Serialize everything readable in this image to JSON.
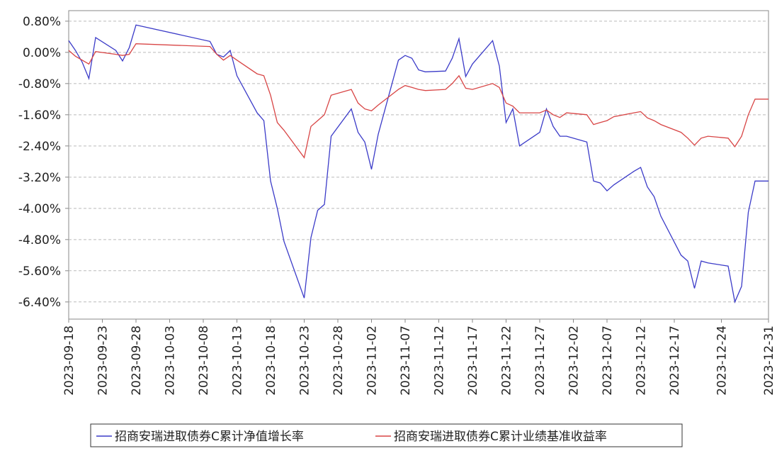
{
  "chart_data": {
    "type": "line",
    "x": [
      "2023-09-18",
      "2023-09-19",
      "2023-09-20",
      "2023-09-21",
      "2023-09-22",
      "2023-09-25",
      "2023-09-26",
      "2023-09-27",
      "2023-09-28",
      "2023-10-09",
      "2023-10-10",
      "2023-10-11",
      "2023-10-12",
      "2023-10-13",
      "2023-10-16",
      "2023-10-17",
      "2023-10-18",
      "2023-10-19",
      "2023-10-20",
      "2023-10-23",
      "2023-10-24",
      "2023-10-25",
      "2023-10-26",
      "2023-10-27",
      "2023-10-30",
      "2023-10-31",
      "2023-11-01",
      "2023-11-02",
      "2023-11-03",
      "2023-11-06",
      "2023-11-07",
      "2023-11-08",
      "2023-11-09",
      "2023-11-10",
      "2023-11-13",
      "2023-11-14",
      "2023-11-15",
      "2023-11-16",
      "2023-11-17",
      "2023-11-20",
      "2023-11-21",
      "2023-11-22",
      "2023-11-23",
      "2023-11-24",
      "2023-11-27",
      "2023-11-28",
      "2023-11-29",
      "2023-11-30",
      "2023-12-01",
      "2023-12-04",
      "2023-12-05",
      "2023-12-06",
      "2023-12-07",
      "2023-12-08",
      "2023-12-11",
      "2023-12-12",
      "2023-12-13",
      "2023-12-14",
      "2023-12-15",
      "2023-12-18",
      "2023-12-19",
      "2023-12-20",
      "2023-12-21",
      "2023-12-22",
      "2023-12-25",
      "2023-12-26",
      "2023-12-27",
      "2023-12-28",
      "2023-12-29",
      "2023-12-31"
    ],
    "series": [
      {
        "name": "招商安瑞进取债券C累计净值增长率",
        "color": "#3b3bc8",
        "values": [
          0.3,
          0.05,
          -0.25,
          -0.67,
          0.38,
          0.05,
          -0.22,
          0.12,
          0.7,
          0.28,
          -0.05,
          -0.12,
          0.05,
          -0.6,
          -1.55,
          -1.75,
          -3.3,
          -4.0,
          -4.85,
          -6.3,
          -4.75,
          -4.05,
          -3.9,
          -2.15,
          -1.45,
          -2.05,
          -2.3,
          -3.0,
          -2.1,
          -0.2,
          -0.08,
          -0.15,
          -0.45,
          -0.5,
          -0.48,
          -0.15,
          0.35,
          -0.62,
          -0.3,
          0.3,
          -0.35,
          -1.8,
          -1.45,
          -2.4,
          -2.05,
          -1.45,
          -1.9,
          -2.15,
          -2.15,
          -2.3,
          -3.3,
          -3.35,
          -3.55,
          -3.4,
          -3.05,
          -2.95,
          -3.45,
          -3.7,
          -4.2,
          -5.2,
          -5.35,
          -6.05,
          -5.35,
          -5.4,
          -5.48,
          -6.4,
          -6.0,
          -4.1,
          -3.3,
          -3.3
        ]
      },
      {
        "name": "招商安瑞进取债券C累计业绩基准收益率",
        "color": "#d84545",
        "values": [
          0.05,
          -0.1,
          -0.2,
          -0.3,
          0.02,
          -0.05,
          -0.08,
          -0.05,
          0.22,
          0.15,
          -0.05,
          -0.2,
          -0.08,
          -0.2,
          -0.55,
          -0.6,
          -1.1,
          -1.8,
          -2.0,
          -2.7,
          -1.9,
          -1.75,
          -1.6,
          -1.1,
          -0.95,
          -1.3,
          -1.45,
          -1.5,
          -1.35,
          -0.95,
          -0.85,
          -0.9,
          -0.95,
          -0.98,
          -0.95,
          -0.8,
          -0.6,
          -0.92,
          -0.95,
          -0.8,
          -0.9,
          -1.3,
          -1.38,
          -1.55,
          -1.55,
          -1.48,
          -1.6,
          -1.67,
          -1.55,
          -1.6,
          -1.85,
          -1.8,
          -1.75,
          -1.65,
          -1.55,
          -1.52,
          -1.68,
          -1.75,
          -1.85,
          -2.05,
          -2.2,
          -2.38,
          -2.2,
          -2.15,
          -2.2,
          -2.42,
          -2.15,
          -1.6,
          -1.2,
          -1.2
        ]
      }
    ],
    "xlim": [
      "2023-09-18",
      "2023-12-31"
    ],
    "xticks": [
      "2023-09-18",
      "2023-09-23",
      "2023-09-28",
      "2023-10-03",
      "2023-10-08",
      "2023-10-13",
      "2023-10-18",
      "2023-10-23",
      "2023-10-28",
      "2023-11-02",
      "2023-11-07",
      "2023-11-12",
      "2023-11-17",
      "2023-11-22",
      "2023-11-27",
      "2023-12-02",
      "2023-12-07",
      "2023-12-12",
      "2023-12-17",
      "2023-12-24",
      "2023-12-31"
    ],
    "ylim": [
      -6.84,
      1.07
    ],
    "yticks": [
      {
        "value": 0.8,
        "label": "0.80%"
      },
      {
        "value": 0,
        "label": "0.00%"
      },
      {
        "value": -0.8,
        "label": "-0.80%"
      },
      {
        "value": -1.6,
        "label": "-1.60%"
      },
      {
        "value": -2.4,
        "label": "-2.40%"
      },
      {
        "value": -3.2,
        "label": "-3.20%"
      },
      {
        "value": -4.0,
        "label": "-4.00%"
      },
      {
        "value": -4.8,
        "label": "-4.80%"
      },
      {
        "value": -5.6,
        "label": "-5.60%"
      },
      {
        "value": -6.4,
        "label": "-6.40%"
      }
    ],
    "grid": true,
    "legend": "bottom"
  }
}
